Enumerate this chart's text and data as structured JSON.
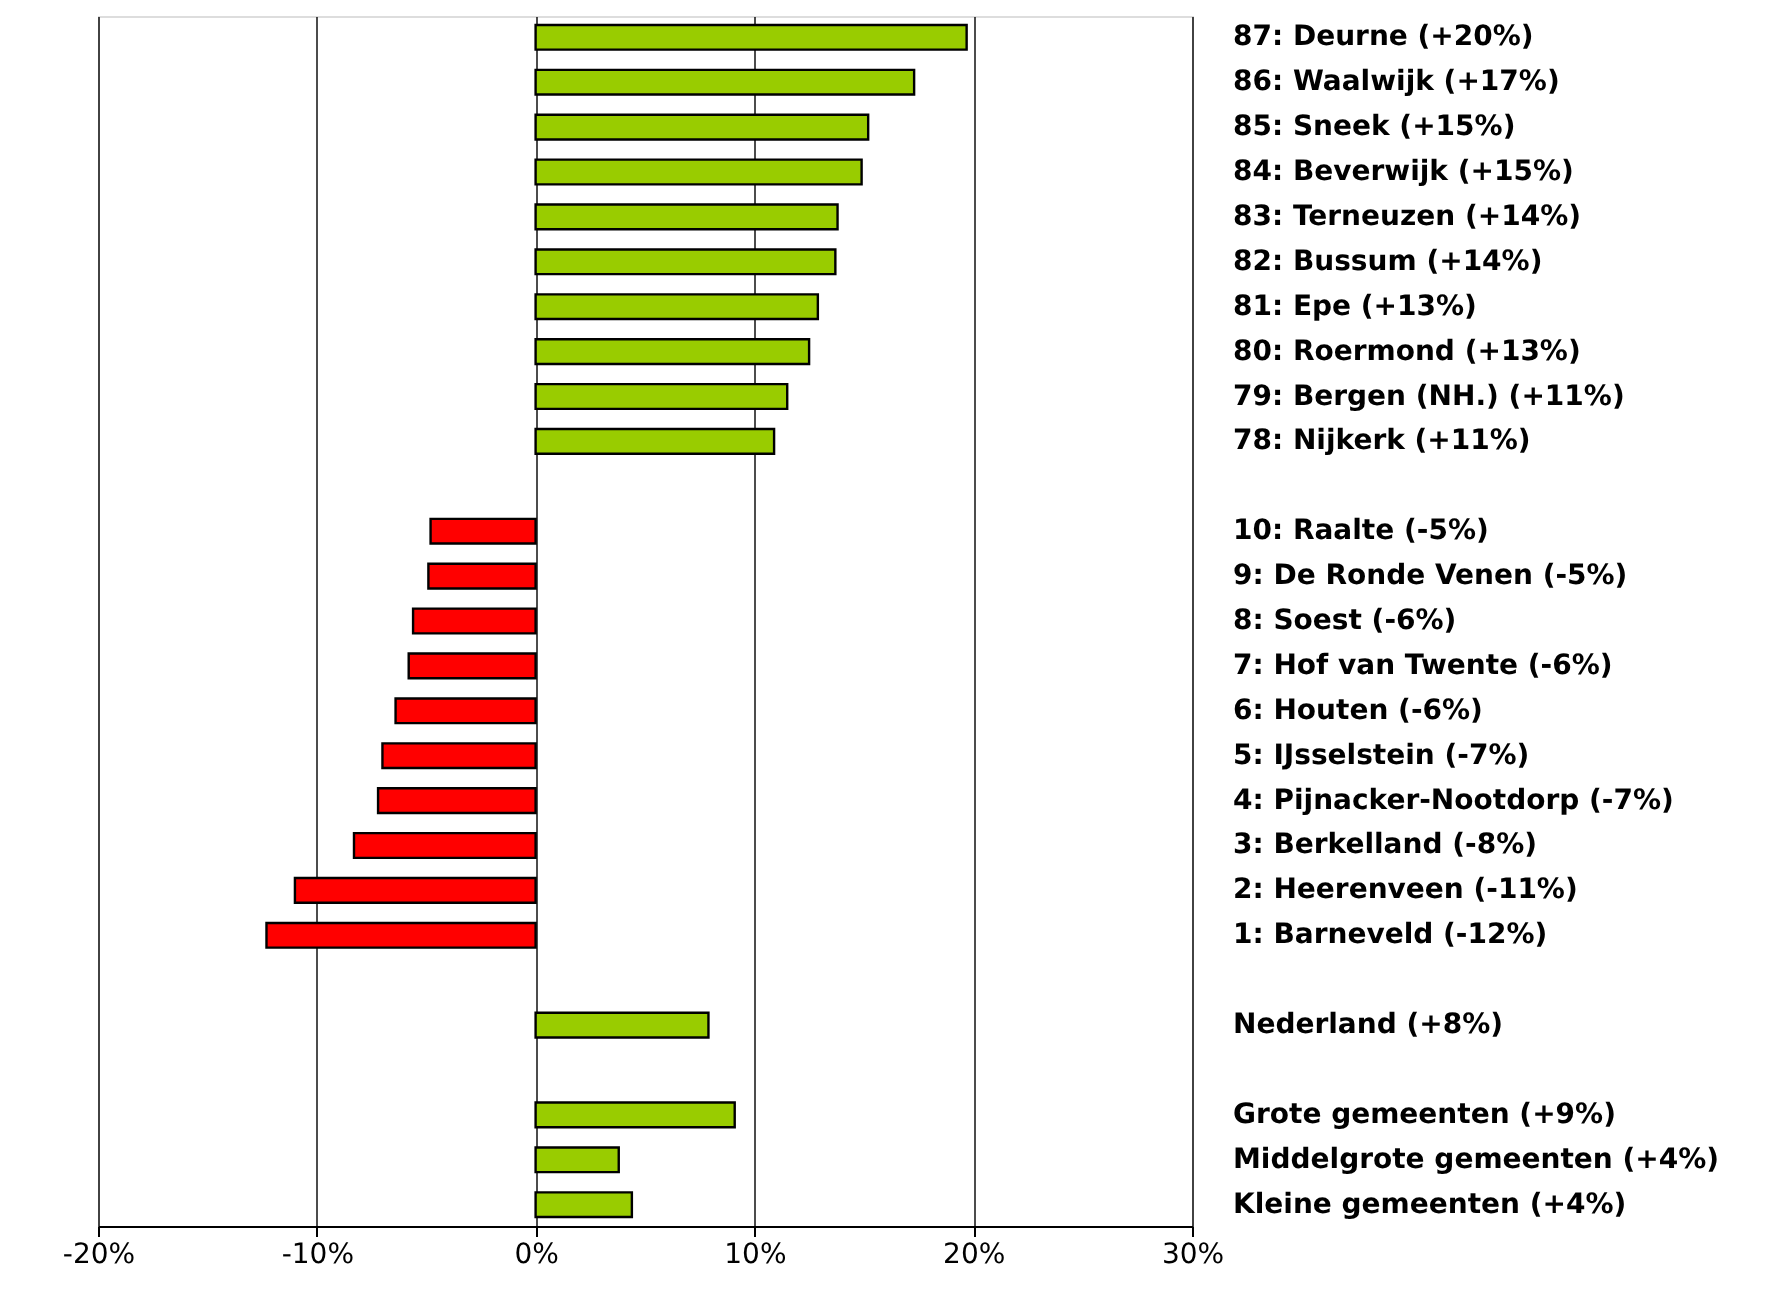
{
  "chart_data": {
    "type": "bar",
    "orientation": "horizontal",
    "categories": [
      "87: Deurne (+20%)",
      "86: Waalwijk (+17%)",
      "85: Sneek (+15%)",
      "84: Beverwijk (+15%)",
      "83: Terneuzen (+14%)",
      "82: Bussum (+14%)",
      "81: Epe (+13%)",
      "80: Roermond (+13%)",
      "79: Bergen (NH.) (+11%)",
      "78: Nijkerk (+11%)",
      null,
      "10: Raalte (-5%)",
      "9: De Ronde Venen (-5%)",
      "8: Soest (-6%)",
      "7: Hof van Twente (-6%)",
      "6: Houten (-6%)",
      "5: IJsselstein (-7%)",
      "4: Pijnacker-Nootdorp (-7%)",
      "3: Berkelland (-8%)",
      "2: Heerenveen (-11%)",
      "1: Barneveld (-12%)",
      null,
      "Nederland (+8%)",
      null,
      "Grote gemeenten (+9%)",
      "Middelgrote gemeenten (+4%)",
      "Kleine gemeenten (+4%)"
    ],
    "values": [
      19.7,
      17.3,
      15.2,
      14.9,
      13.8,
      13.7,
      12.9,
      12.5,
      11.5,
      10.9,
      null,
      -4.8,
      -4.9,
      -5.6,
      -5.8,
      -6.4,
      -7.0,
      -7.2,
      -8.3,
      -11.0,
      -12.3,
      null,
      7.9,
      null,
      9.1,
      3.8,
      4.4
    ],
    "colors": [
      "#99cc00",
      "#99cc00",
      "#99cc00",
      "#99cc00",
      "#99cc00",
      "#99cc00",
      "#99cc00",
      "#99cc00",
      "#99cc00",
      "#99cc00",
      null,
      "#ff0000",
      "#ff0000",
      "#ff0000",
      "#ff0000",
      "#ff0000",
      "#ff0000",
      "#ff0000",
      "#ff0000",
      "#ff0000",
      "#ff0000",
      null,
      "#99cc00",
      null,
      "#99cc00",
      "#99cc00",
      "#99cc00"
    ],
    "xlim": [
      -20,
      30
    ],
    "xticks": [
      {
        "value": -20,
        "label": "-20%"
      },
      {
        "value": -10,
        "label": "-10%"
      },
      {
        "value": 0,
        "label": "0%"
      },
      {
        "value": 10,
        "label": "10%"
      },
      {
        "value": 20,
        "label": "20%"
      },
      {
        "value": 30,
        "label": "30%"
      }
    ],
    "grid": "x"
  }
}
